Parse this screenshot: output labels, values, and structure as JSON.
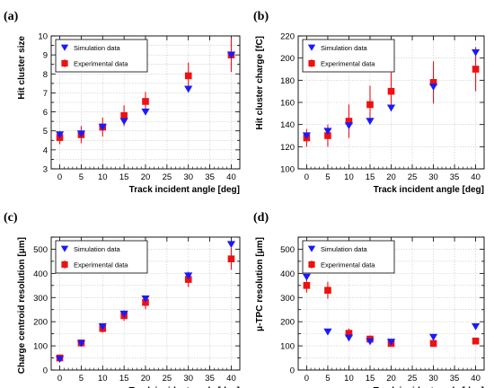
{
  "colors": {
    "simulation": "#1a1aff",
    "experimental": "#ee1111",
    "error_bar": "#ee1111",
    "frame": "#000000"
  },
  "chart_data": [
    {
      "panel_label": "(a)",
      "type": "scatter",
      "xlabel": "Track incident angle [deg]",
      "ylabel": "Hit cluster size",
      "xlim": [
        -2,
        42
      ],
      "ylim": [
        3,
        10
      ],
      "xticks": [
        0,
        5,
        10,
        15,
        20,
        25,
        30,
        35,
        40
      ],
      "yticks": [
        3,
        3.5,
        4,
        4.5,
        5,
        5.5,
        6,
        6.5,
        7,
        7.5,
        8,
        8.5,
        9,
        9.5,
        10
      ],
      "ytick_labels": [
        "3",
        "",
        "4",
        "",
        "5",
        "",
        "6",
        "",
        "7",
        "",
        "8",
        "",
        "9",
        "",
        "10"
      ],
      "grid": true,
      "legend_position": "top-left",
      "series": [
        {
          "name": "Simulation data",
          "marker": "triangle-down",
          "x": [
            0,
            5,
            10,
            15,
            20,
            30,
            40
          ],
          "y": [
            4.8,
            4.85,
            5.2,
            5.5,
            6.0,
            7.2,
            9.0
          ]
        },
        {
          "name": "Experimental data",
          "marker": "square",
          "x": [
            0,
            5,
            10,
            15,
            20,
            30,
            40
          ],
          "y": [
            4.65,
            4.8,
            5.2,
            5.8,
            6.55,
            7.9,
            9.0
          ],
          "err": [
            0.35,
            0.45,
            0.5,
            0.55,
            0.5,
            0.7,
            0.9
          ]
        }
      ]
    },
    {
      "panel_label": "(b)",
      "type": "scatter",
      "xlabel": "Track incident angle [deg]",
      "ylabel": "Hit cluster charge [fC]",
      "xlim": [
        -2,
        42
      ],
      "ylim": [
        100,
        220
      ],
      "xticks": [
        0,
        5,
        10,
        15,
        20,
        25,
        30,
        35,
        40
      ],
      "yticks": [
        100,
        120,
        140,
        160,
        180,
        200,
        220
      ],
      "ytick_labels": [
        "100",
        "120",
        "140",
        "160",
        "180",
        "200",
        "220"
      ],
      "grid": true,
      "legend_position": "top-left",
      "series": [
        {
          "name": "Simulation data",
          "marker": "triangle-down",
          "x": [
            0,
            5,
            10,
            15,
            20,
            30,
            40
          ],
          "y": [
            130,
            134,
            139,
            143,
            155,
            174,
            205
          ]
        },
        {
          "name": "Experimental data",
          "marker": "square",
          "x": [
            0,
            5,
            10,
            15,
            20,
            30,
            40
          ],
          "y": [
            128,
            130,
            143,
            158,
            170,
            178,
            190
          ],
          "err": [
            8,
            10,
            15,
            17,
            18,
            19,
            20
          ]
        }
      ]
    },
    {
      "panel_label": "(c)",
      "type": "scatter",
      "xlabel": "Track incident angle [deg]",
      "ylabel": "Charge centroid resolution [μm]",
      "xlim": [
        -2,
        42
      ],
      "ylim": [
        0,
        550
      ],
      "xticks": [
        0,
        5,
        10,
        15,
        20,
        25,
        30,
        35,
        40
      ],
      "yticks": [
        0,
        50,
        100,
        150,
        200,
        250,
        300,
        350,
        400,
        450,
        500,
        550
      ],
      "ytick_labels": [
        "0",
        "",
        "100",
        "",
        "200",
        "",
        "300",
        "",
        "400",
        "",
        "500",
        ""
      ],
      "grid": true,
      "legend_position": "top-left",
      "series": [
        {
          "name": "Simulation data",
          "marker": "triangle-down",
          "x": [
            0,
            5,
            10,
            15,
            20,
            30,
            40
          ],
          "y": [
            45,
            110,
            180,
            232,
            295,
            390,
            520
          ]
        },
        {
          "name": "Experimental data",
          "marker": "square",
          "x": [
            0,
            5,
            10,
            15,
            20,
            30,
            40
          ],
          "y": [
            50,
            112,
            172,
            225,
            280,
            375,
            460
          ],
          "err": [
            10,
            15,
            18,
            22,
            28,
            32,
            45
          ]
        }
      ]
    },
    {
      "panel_label": "(d)",
      "type": "scatter",
      "xlabel": "Track incident angle [deg]",
      "ylabel": "μ-TPC resolution [μm]",
      "xlim": [
        -2,
        42
      ],
      "ylim": [
        0,
        550
      ],
      "xticks": [
        0,
        5,
        10,
        15,
        20,
        25,
        30,
        35,
        40
      ],
      "yticks": [
        0,
        50,
        100,
        150,
        200,
        250,
        300,
        350,
        400,
        450,
        500,
        550
      ],
      "ytick_labels": [
        "0",
        "",
        "100",
        "",
        "200",
        "",
        "300",
        "",
        "400",
        "",
        "500",
        ""
      ],
      "grid": true,
      "legend_position": "top-left",
      "series": [
        {
          "name": "Simulation data",
          "marker": "triangle-down",
          "x": [
            0,
            5,
            10,
            15,
            20,
            30,
            40
          ],
          "y": [
            385,
            158,
            133,
            118,
            116,
            136,
            180
          ]
        },
        {
          "name": "Experimental data",
          "marker": "square",
          "x": [
            0,
            5,
            10,
            15,
            20,
            30,
            40
          ],
          "y": [
            350,
            330,
            152,
            128,
            110,
            110,
            120
          ],
          "err": [
            30,
            35,
            20,
            15,
            12,
            10,
            10
          ]
        }
      ]
    }
  ]
}
